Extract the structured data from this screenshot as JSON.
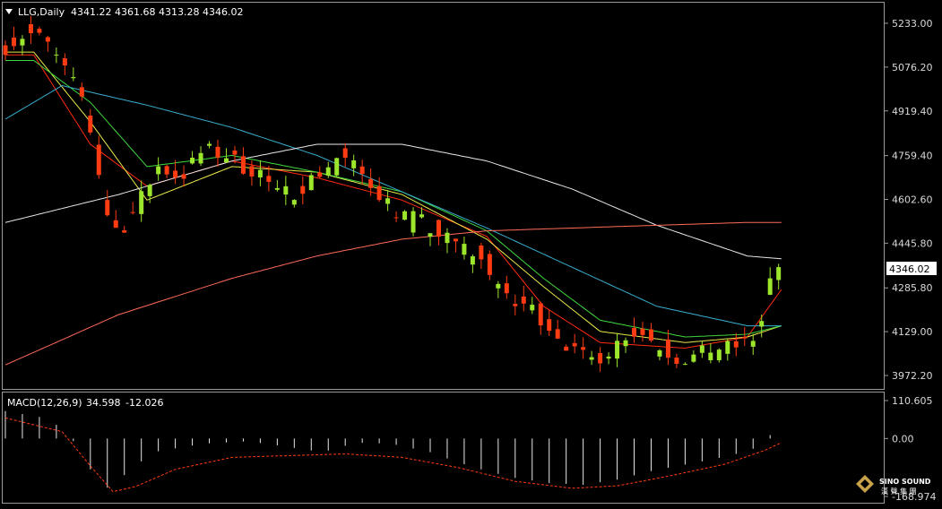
{
  "header": {
    "symbol_label": "LLG,Daily",
    "ohlc_label": "4341.22 4361.68 4313.28 4346.02"
  },
  "colors": {
    "background": "#000000",
    "bull": "#9ce62c",
    "bear": "#ff3b12",
    "ma_red": "#ff2a10",
    "ma_yellow": "#e8e84a",
    "ma_green": "#3fd83f",
    "ma_cyan": "#3aaed0",
    "ma_white": "#e8e8e8",
    "ma_long": "#ff6a5a",
    "grid_text": "#d8d8d8"
  },
  "chart_data": [
    {
      "type": "candlestick",
      "title": "",
      "price_axis": {
        "ticks": [
          "5233.00",
          "5076.20",
          "4919.40",
          "4759.40",
          "4602.60",
          "4445.80",
          "4285.80",
          "4129.00",
          "3972.20"
        ],
        "range": [
          3880,
          5275
        ]
      },
      "current_price_label": "4346.02",
      "close_path": [
        [
          0,
          5150
        ],
        [
          8,
          5200
        ],
        [
          14,
          5170
        ],
        [
          20,
          5080
        ],
        [
          28,
          4950
        ],
        [
          36,
          4550
        ],
        [
          40,
          4480
        ],
        [
          46,
          4570
        ],
        [
          54,
          4720
        ],
        [
          62,
          4680
        ],
        [
          70,
          4780
        ],
        [
          78,
          4760
        ],
        [
          84,
          4720
        ],
        [
          90,
          4700
        ],
        [
          96,
          4620
        ],
        [
          102,
          4630
        ],
        [
          110,
          4690
        ],
        [
          118,
          4760
        ],
        [
          124,
          4710
        ],
        [
          130,
          4650
        ],
        [
          138,
          4560
        ],
        [
          146,
          4530
        ],
        [
          152,
          4480
        ],
        [
          158,
          4450
        ],
        [
          164,
          4420
        ],
        [
          172,
          4340
        ],
        [
          178,
          4220
        ],
        [
          184,
          4230
        ],
        [
          190,
          4170
        ],
        [
          196,
          4110
        ],
        [
          202,
          4040
        ],
        [
          208,
          4030
        ],
        [
          214,
          4070
        ],
        [
          220,
          4130
        ],
        [
          226,
          4120
        ],
        [
          232,
          4070
        ],
        [
          238,
          4030
        ],
        [
          244,
          4040
        ],
        [
          250,
          4070
        ],
        [
          256,
          4070
        ],
        [
          262,
          4090
        ],
        [
          266,
          4120
        ],
        [
          270,
          4310
        ],
        [
          274,
          4346
        ]
      ],
      "moving_averages": [
        {
          "points": [
            [
              10,
              5120
            ],
            [
              30,
              4800
            ],
            [
              50,
              4650
            ],
            [
              80,
              4740
            ],
            [
              110,
              4680
            ],
            [
              140,
              4600
            ],
            [
              170,
              4470
            ],
            [
              190,
              4220
            ],
            [
              210,
              4090
            ],
            [
              240,
              4070
            ],
            [
              262,
              4110
            ],
            [
              274,
              4280
            ]
          ]
        },
        {
          "points": [
            [
              10,
              5130
            ],
            [
              30,
              4880
            ],
            [
              50,
              4600
            ],
            [
              80,
              4720
            ],
            [
              110,
              4700
            ],
            [
              140,
              4620
            ],
            [
              170,
              4460
            ],
            [
              190,
              4290
            ],
            [
              210,
              4130
            ],
            [
              240,
              4090
            ],
            [
              262,
              4110
            ],
            [
              274,
              4150
            ]
          ]
        },
        {
          "points": [
            [
              10,
              5100
            ],
            [
              30,
              4950
            ],
            [
              50,
              4720
            ],
            [
              80,
              4760
            ],
            [
              110,
              4700
            ],
            [
              140,
              4630
            ],
            [
              170,
              4490
            ],
            [
              190,
              4320
            ],
            [
              210,
              4170
            ],
            [
              240,
              4110
            ],
            [
              262,
              4120
            ],
            [
              274,
              4150
            ]
          ]
        },
        {
          "points": [
            [
              0,
              4890
            ],
            [
              20,
              5010
            ],
            [
              50,
              4940
            ],
            [
              80,
              4860
            ],
            [
              110,
              4760
            ],
            [
              140,
              4630
            ],
            [
              170,
              4500
            ],
            [
              200,
              4360
            ],
            [
              230,
              4220
            ],
            [
              262,
              4150
            ],
            [
              274,
              4150
            ]
          ]
        },
        {
          "points": [
            [
              0,
              4520
            ],
            [
              40,
              4620
            ],
            [
              80,
              4740
            ],
            [
              110,
              4800
            ],
            [
              140,
              4800
            ],
            [
              170,
              4740
            ],
            [
              200,
              4640
            ],
            [
              230,
              4510
            ],
            [
              262,
              4400
            ],
            [
              274,
              4390
            ]
          ]
        },
        {
          "points": [
            [
              0,
              4010
            ],
            [
              40,
              4190
            ],
            [
              80,
              4320
            ],
            [
              110,
              4400
            ],
            [
              140,
              4460
            ],
            [
              170,
              4490
            ],
            [
              200,
              4500
            ],
            [
              230,
              4510
            ],
            [
              262,
              4520
            ],
            [
              274,
              4520
            ]
          ]
        }
      ]
    },
    {
      "type": "bar",
      "title": "MACD(12,26,9)",
      "header_values": [
        "34.598",
        "-12.026"
      ],
      "y_ticks": [
        "110.605",
        "0.00",
        "-168.974"
      ],
      "ylim": [
        -168.974,
        110.605
      ],
      "macd_path": [
        [
          0,
          80
        ],
        [
          14,
          60
        ],
        [
          22,
          20
        ],
        [
          30,
          -90
        ],
        [
          34,
          -155
        ],
        [
          40,
          -120
        ],
        [
          52,
          -40
        ],
        [
          70,
          -15
        ],
        [
          86,
          -8
        ],
        [
          100,
          -25
        ],
        [
          112,
          -40
        ],
        [
          124,
          -12
        ],
        [
          136,
          -15
        ],
        [
          150,
          -40
        ],
        [
          160,
          -70
        ],
        [
          170,
          -95
        ],
        [
          180,
          -115
        ],
        [
          192,
          -130
        ],
        [
          204,
          -135
        ],
        [
          216,
          -120
        ],
        [
          228,
          -95
        ],
        [
          244,
          -70
        ],
        [
          256,
          -50
        ],
        [
          264,
          -30
        ],
        [
          270,
          10
        ],
        [
          274,
          34.6
        ]
      ],
      "signal_path": [
        [
          0,
          60
        ],
        [
          20,
          20
        ],
        [
          30,
          -80
        ],
        [
          38,
          -155
        ],
        [
          46,
          -140
        ],
        [
          60,
          -90
        ],
        [
          80,
          -55
        ],
        [
          100,
          -50
        ],
        [
          120,
          -45
        ],
        [
          140,
          -55
        ],
        [
          160,
          -85
        ],
        [
          180,
          -125
        ],
        [
          200,
          -145
        ],
        [
          216,
          -138
        ],
        [
          234,
          -110
        ],
        [
          254,
          -75
        ],
        [
          268,
          -35
        ],
        [
          274,
          -12.0
        ]
      ]
    }
  ],
  "watermark": {
    "brand_line1": "SINO SOUND",
    "brand_line2": "漢 聲 集 團"
  }
}
